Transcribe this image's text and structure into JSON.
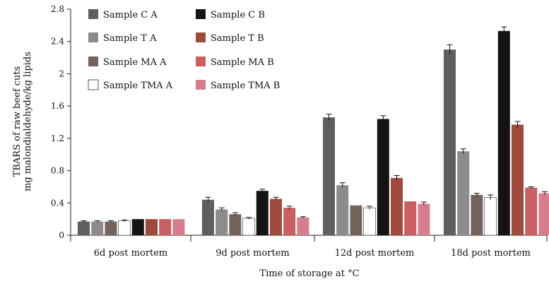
{
  "chart_data": {
    "type": "bar",
    "title": "",
    "xlabel": "Time of storage at °C",
    "ylabel_lines": [
      "TBARS of raw beef cuts",
      "mg malondialdehyde/kg lipids"
    ],
    "ylim": [
      0,
      2.8
    ],
    "yticks": [
      "0",
      "0.4",
      "0.8",
      "1.2",
      "1.6",
      "2",
      "2.4",
      "2.8"
    ],
    "categories": [
      "6d post mortem",
      "9d post mortem",
      "12d post mortem",
      "18d post mortem"
    ],
    "legend_position": "top-left",
    "series": [
      {
        "name": "Sample C A",
        "color": "#5f5f5f",
        "values": [
          0.17,
          0.44,
          1.46,
          2.3
        ]
      },
      {
        "name": "Sample T A",
        "color": "#8c8c8c",
        "values": [
          0.17,
          0.32,
          0.62,
          1.04
        ]
      },
      {
        "name": "Sample MA A",
        "color": "#74625c",
        "values": [
          0.17,
          0.26,
          0.37,
          0.5
        ]
      },
      {
        "name": "Sample TMA A",
        "color": "#ffffff",
        "values": [
          0.18,
          0.21,
          0.34,
          0.47
        ]
      },
      {
        "name": "Sample C B",
        "color": "#141414",
        "values": [
          0.2,
          0.55,
          1.44,
          2.53
        ]
      },
      {
        "name": "Sample T B",
        "color": "#9e4a3c",
        "values": [
          0.2,
          0.45,
          0.71,
          1.37
        ]
      },
      {
        "name": "Sample MA B",
        "color": "#c95f62",
        "values": [
          0.2,
          0.34,
          0.42,
          0.59
        ]
      },
      {
        "name": "Sample TMA B",
        "color": "#d67e8e",
        "values": [
          0.2,
          0.22,
          0.39,
          0.52
        ]
      }
    ],
    "error_bars": [
      [
        0.01,
        0.03,
        0.04,
        0.06
      ],
      [
        0.01,
        0.02,
        0.03,
        0.03
      ],
      [
        0.01,
        0.02,
        0.0,
        0.02
      ],
      [
        0.01,
        0.01,
        0.02,
        0.03
      ],
      [
        0.0,
        0.02,
        0.04,
        0.05
      ],
      [
        0.0,
        0.02,
        0.03,
        0.04
      ],
      [
        0.0,
        0.02,
        0.0,
        0.01
      ],
      [
        0.0,
        0.01,
        0.02,
        0.02
      ]
    ],
    "legend_layout": [
      [
        "Sample C A",
        "Sample C B"
      ],
      [
        "Sample T A",
        "Sample T B"
      ],
      [
        "Sample MA A",
        "Sample MA B"
      ],
      [
        "Sample TMA A",
        "Sample TMA B"
      ]
    ]
  }
}
